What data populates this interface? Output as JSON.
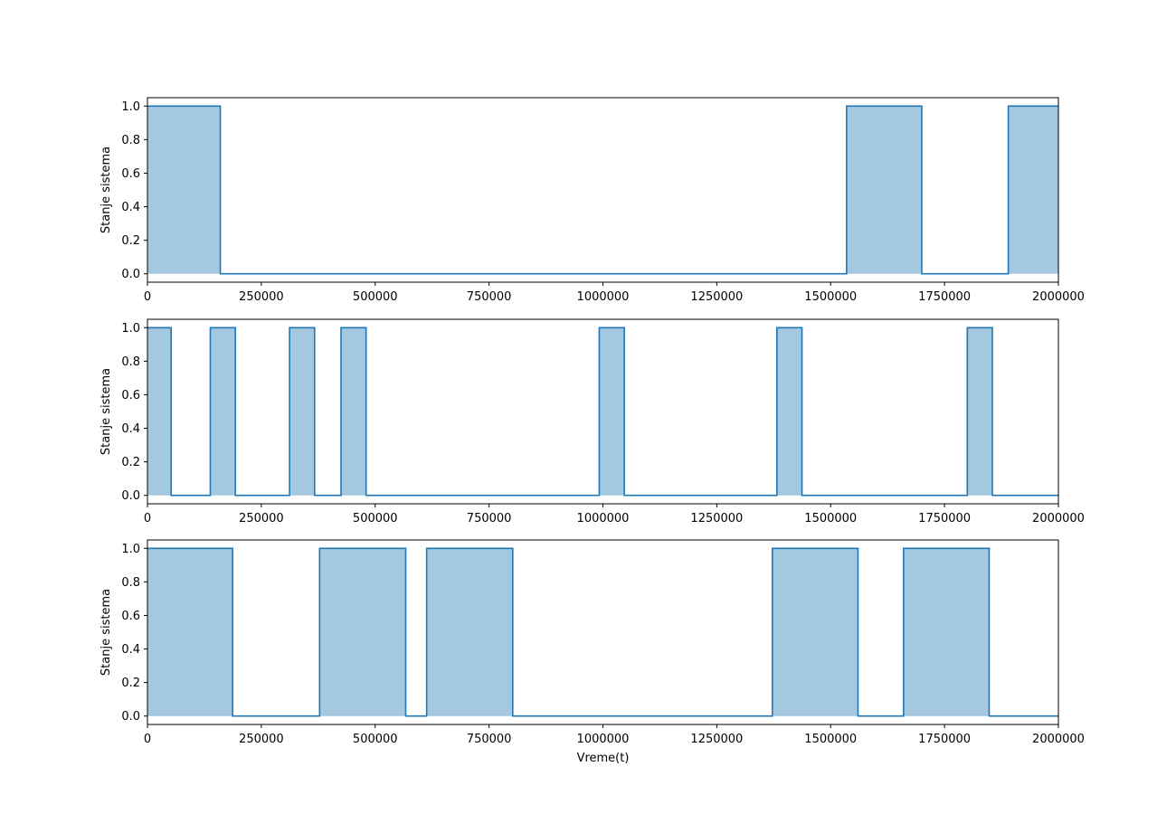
{
  "chart_data": [
    {
      "type": "area",
      "step": "post",
      "ylabel": "Stanje sistema",
      "xlabel": "",
      "xlim": [
        0,
        2000000
      ],
      "ylim": [
        -0.05,
        1.05
      ],
      "xticks": [
        0,
        250000,
        500000,
        750000,
        1000000,
        1250000,
        1500000,
        1750000,
        2000000
      ],
      "yticks": [
        0.0,
        0.2,
        0.4,
        0.6,
        0.8,
        1.0
      ],
      "xtick_labels": [
        "0",
        "250000",
        "500000",
        "750000",
        "1000000",
        "1250000",
        "1500000",
        "1750000",
        "2000000"
      ],
      "ytick_labels": [
        "0.0",
        "0.2",
        "0.4",
        "0.6",
        "0.8",
        "1.0"
      ],
      "series": [
        {
          "color": "#1f77b4",
          "fill_color": "#a5c8e1",
          "x": [
            0,
            160000,
            1535000,
            1700000,
            1890000,
            2000000
          ],
          "y": [
            1,
            0,
            1,
            0,
            1,
            1
          ]
        }
      ]
    },
    {
      "type": "area",
      "step": "post",
      "ylabel": "Stanje sistema",
      "xlabel": "",
      "xlim": [
        0,
        2000000
      ],
      "ylim": [
        -0.05,
        1.05
      ],
      "xticks": [
        0,
        250000,
        500000,
        750000,
        1000000,
        1250000,
        1500000,
        1750000,
        2000000
      ],
      "yticks": [
        0.0,
        0.2,
        0.4,
        0.6,
        0.8,
        1.0
      ],
      "xtick_labels": [
        "0",
        "250000",
        "500000",
        "750000",
        "1000000",
        "1250000",
        "1500000",
        "1750000",
        "2000000"
      ],
      "ytick_labels": [
        "0.0",
        "0.2",
        "0.4",
        "0.6",
        "0.8",
        "1.0"
      ],
      "series": [
        {
          "color": "#1f77b4",
          "fill_color": "#a5c8e1",
          "x": [
            0,
            52000,
            138000,
            193000,
            312000,
            367000,
            425000,
            480000,
            992000,
            1047000,
            1382000,
            1437000,
            1800000,
            1855000,
            2000000
          ],
          "y": [
            1,
            0,
            1,
            0,
            1,
            0,
            1,
            0,
            1,
            0,
            1,
            0,
            1,
            0,
            0
          ]
        }
      ]
    },
    {
      "type": "area",
      "step": "post",
      "ylabel": "Stanje sistema",
      "xlabel": "Vreme(t)",
      "xlim": [
        0,
        2000000
      ],
      "ylim": [
        -0.05,
        1.05
      ],
      "xticks": [
        0,
        250000,
        500000,
        750000,
        1000000,
        1250000,
        1500000,
        1750000,
        2000000
      ],
      "yticks": [
        0.0,
        0.2,
        0.4,
        0.6,
        0.8,
        1.0
      ],
      "xtick_labels": [
        "0",
        "250000",
        "500000",
        "750000",
        "1000000",
        "1250000",
        "1500000",
        "1750000",
        "2000000"
      ],
      "ytick_labels": [
        "0.0",
        "0.2",
        "0.4",
        "0.6",
        "0.8",
        "1.0"
      ],
      "series": [
        {
          "color": "#1f77b4",
          "fill_color": "#a5c8e1",
          "x": [
            0,
            187000,
            378000,
            567000,
            613000,
            802000,
            1372000,
            1560000,
            1660000,
            1848000,
            2000000
          ],
          "y": [
            1,
            0,
            1,
            0,
            1,
            0,
            1,
            0,
            1,
            0,
            0
          ]
        }
      ]
    }
  ]
}
